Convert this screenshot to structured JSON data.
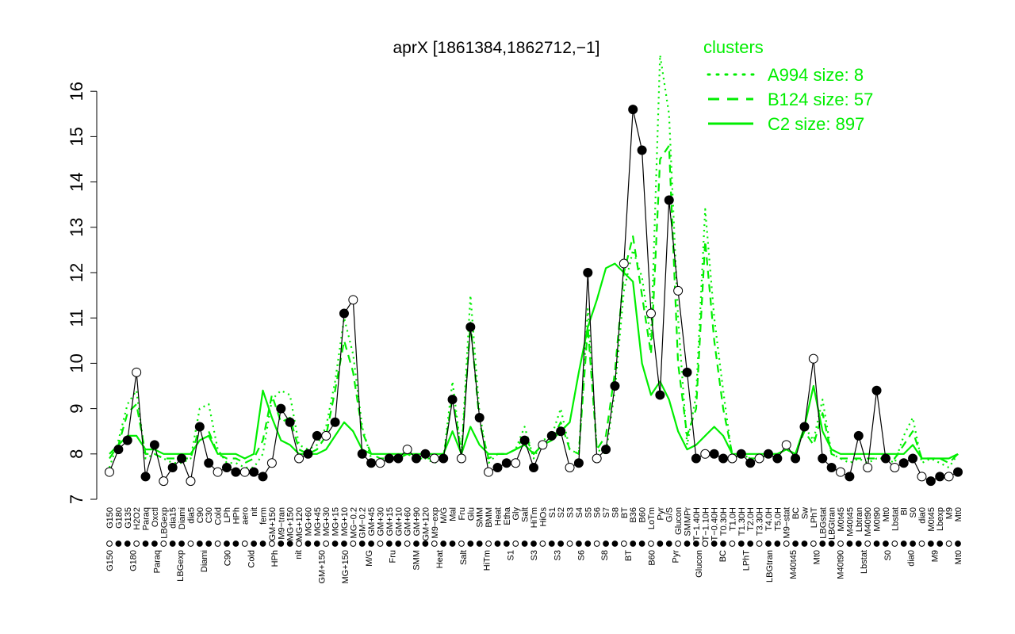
{
  "chart_data": {
    "type": "line",
    "title": "aprX [1861384,1862712,−1]",
    "xlabel": "",
    "ylabel": "",
    "ylim": [
      7,
      16.3
    ],
    "yticks": [
      7,
      8,
      9,
      10,
      11,
      12,
      13,
      14,
      15,
      16
    ],
    "grid": false,
    "legend": {
      "title": "clusters",
      "placement": "top-right",
      "entries": [
        {
          "label": "A994 size: 8",
          "style": "dotted"
        },
        {
          "label": "B124 size: 57",
          "style": "dashed"
        },
        {
          "label": "C2 size: 897",
          "style": "solid"
        }
      ]
    },
    "colors": {
      "cluster_lines": "#00ee00",
      "points": "#000000",
      "axis": "#000000"
    },
    "x_tick_labels_top": [
      "G150",
      "G180",
      "G135",
      "H2O2",
      "Paraq",
      "Oxctl",
      "LBGexp",
      "dia15",
      "Diami",
      "dia5",
      "C90",
      "C30",
      "Cold",
      "LPh",
      "HPh",
      "aero",
      "nit",
      "ferm",
      "GM+150",
      "M9−tran",
      "MG+150",
      "MG+120",
      "MG+60",
      "MG+45",
      "MG+30",
      "MG+15",
      "MG+10",
      "MG−0.2",
      "GM−0.2",
      "GM+45",
      "GM+30",
      "GM+15",
      "GM+10",
      "GM+60",
      "GM+90",
      "GM+120",
      "M9−exp",
      "M/G",
      "Mal",
      "Fru",
      "Glu",
      "SMM",
      "BMM",
      "Heat",
      "Etha",
      "Gly",
      "Salt",
      "HiTm",
      "HiOs",
      "S1",
      "S2",
      "S3",
      "S4",
      "S5",
      "S6",
      "S7",
      "S8",
      "BT",
      "B36",
      "B60",
      "LoTm",
      "Pyr",
      "G/S",
      "Glucon",
      "SMMPr",
      "T−1.40H",
      "T−1.10H",
      "T−0.40H",
      "T0.30H",
      "T1.0H",
      "T1.30H",
      "T2.0H",
      "T3.30H",
      "T4.0H",
      "T5.0H",
      "M9−stat",
      "BC",
      "Sw",
      "LPhT",
      "LBGstat",
      "LBGtran",
      "M0t45",
      "M40t45",
      "Lbtran",
      "M40t90",
      "M0t90",
      "Mt0",
      "Lbstat",
      "BI",
      "S0",
      "dia0",
      "M0t45",
      "Lbexp",
      "M9",
      "Mt0"
    ],
    "x_tick_labels_bottom": [
      "G150",
      "G180",
      "Paraq",
      "LBGexp",
      "Diami",
      "C90",
      "Cold",
      "HPh",
      "nit",
      "GM+150",
      "MG+150",
      "M/G",
      "Fru",
      "SMM",
      "Heat",
      "Salt",
      "HiTm",
      "S1",
      "S3",
      "S3",
      "S6",
      "S8",
      "BT",
      "B60",
      "Pyr",
      "Glucon",
      "BC",
      "LPhT",
      "LBGtran",
      "M40t45",
      "Mt0",
      "M40t90",
      "Lbstat",
      "S0",
      "dia0",
      "M9",
      "Mt0"
    ],
    "series": [
      {
        "name": "A994 size: 8",
        "style": "dotted",
        "values": [
          7.7,
          8.3,
          9.1,
          9.4,
          7.9,
          8.0,
          7.9,
          7.8,
          7.8,
          7.9,
          9.0,
          9.1,
          8.1,
          7.8,
          7.8,
          7.7,
          7.7,
          8.0,
          9.2,
          9.4,
          9.3,
          8.2,
          8.1,
          8.2,
          8.6,
          9.6,
          11.0,
          10.2,
          8.6,
          7.9,
          7.8,
          7.9,
          7.9,
          8.0,
          7.9,
          7.9,
          7.8,
          7.9,
          9.6,
          8.0,
          11.5,
          8.9,
          7.8,
          8.0,
          8.0,
          8.1,
          8.6,
          7.9,
          8.3,
          8.4,
          9.0,
          8.1,
          8.0,
          11.2,
          8.1,
          8.0,
          9.4,
          11.6,
          12.5,
          11.9,
          10.5,
          16.8,
          15.5,
          11.0,
          8.2,
          9.3,
          13.4,
          11.0,
          9.4,
          7.9,
          8.0,
          7.9,
          7.9,
          8.0,
          8.0,
          8.1,
          8.0,
          8.6,
          8.3,
          9.2,
          8.0,
          7.9,
          7.8,
          7.9,
          7.8,
          7.9,
          7.9,
          7.8,
          8.4,
          8.8,
          7.8,
          7.9,
          7.8,
          7.7,
          8.0
        ]
      },
      {
        "name": "B124 size: 57",
        "style": "dashed",
        "values": [
          7.9,
          8.2,
          8.9,
          9.1,
          8.0,
          8.0,
          7.9,
          7.9,
          7.9,
          7.9,
          8.6,
          8.5,
          8.0,
          7.9,
          7.9,
          7.8,
          7.9,
          8.3,
          9.3,
          8.7,
          8.8,
          8.1,
          8.0,
          8.1,
          8.4,
          9.4,
          10.5,
          9.8,
          8.5,
          8.0,
          7.9,
          7.9,
          7.9,
          8.0,
          7.9,
          7.9,
          7.9,
          7.9,
          9.3,
          8.0,
          10.9,
          8.7,
          7.9,
          8.0,
          8.0,
          8.1,
          8.4,
          8.0,
          8.2,
          8.3,
          8.7,
          8.1,
          8.0,
          10.8,
          8.1,
          8.4,
          9.8,
          12.0,
          12.8,
          11.5,
          10.2,
          14.5,
          14.8,
          10.0,
          8.4,
          9.0,
          12.7,
          10.5,
          9.0,
          8.0,
          8.0,
          7.9,
          7.9,
          8.0,
          8.0,
          8.1,
          8.0,
          8.5,
          8.2,
          8.9,
          8.0,
          7.9,
          7.9,
          7.9,
          7.9,
          7.9,
          7.9,
          7.9,
          8.2,
          8.5,
          7.9,
          7.9,
          7.9,
          7.8,
          8.0
        ]
      },
      {
        "name": "C2 size: 897",
        "style": "solid",
        "values": [
          8.0,
          8.2,
          8.4,
          8.4,
          8.1,
          8.1,
          8.0,
          8.0,
          8.0,
          8.0,
          8.3,
          8.4,
          8.0,
          8.0,
          8.0,
          7.9,
          8.0,
          9.4,
          8.8,
          8.3,
          8.2,
          8.0,
          8.0,
          8.0,
          8.1,
          8.4,
          8.7,
          8.5,
          8.1,
          8.0,
          8.0,
          8.0,
          8.0,
          8.0,
          8.0,
          8.0,
          8.0,
          8.0,
          8.5,
          8.0,
          8.6,
          8.2,
          8.0,
          8.0,
          8.0,
          8.1,
          8.2,
          8.0,
          8.2,
          8.3,
          8.5,
          8.7,
          9.8,
          10.8,
          11.4,
          12.1,
          12.2,
          12.0,
          11.8,
          10.0,
          9.3,
          9.6,
          9.2,
          8.5,
          8.1,
          8.2,
          8.4,
          8.6,
          8.4,
          8.0,
          8.0,
          8.0,
          8.0,
          8.0,
          8.0,
          8.1,
          8.0,
          8.6,
          9.5,
          8.5,
          8.1,
          8.0,
          8.0,
          8.0,
          8.0,
          8.0,
          8.0,
          8.0,
          8.0,
          8.2,
          7.9,
          7.9,
          7.9,
          7.9,
          8.0
        ]
      },
      {
        "name": "",
        "style": "points",
        "values": [
          7.6,
          8.1,
          8.3,
          9.8,
          7.5,
          8.2,
          7.4,
          7.7,
          7.9,
          7.4,
          8.6,
          7.8,
          7.6,
          7.7,
          7.6,
          7.6,
          7.6,
          7.5,
          7.8,
          9.0,
          8.7,
          7.9,
          8.0,
          8.4,
          8.4,
          8.7,
          11.1,
          11.4,
          8.0,
          7.8,
          7.8,
          7.9,
          7.9,
          8.1,
          7.9,
          8.0,
          7.9,
          7.9,
          9.2,
          7.9,
          10.8,
          8.8,
          7.6,
          7.7,
          7.8,
          7.8,
          8.3,
          7.7,
          8.2,
          8.4,
          8.5,
          7.7,
          7.8,
          12.0,
          7.9,
          8.1,
          9.5,
          12.2,
          15.6,
          14.7,
          11.1,
          9.3,
          13.6,
          11.6,
          9.8,
          7.9,
          8.0,
          8.0,
          7.9,
          7.9,
          8.0,
          7.8,
          7.9,
          8.0,
          7.9,
          8.2,
          7.9,
          8.6,
          10.1,
          7.9,
          7.7,
          7.6,
          7.5,
          8.4,
          7.7,
          9.4,
          7.9,
          7.7,
          7.8,
          7.9,
          7.5,
          7.4,
          7.5,
          7.5,
          7.6
        ]
      }
    ]
  }
}
